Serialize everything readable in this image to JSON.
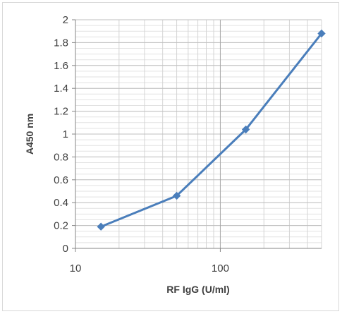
{
  "chart_data": {
    "type": "line",
    "title": "",
    "xlabel": "RF IgG (U/ml)",
    "ylabel": "A450 nm",
    "x_scale": "log",
    "xlim": [
      10,
      500
    ],
    "ylim": [
      0,
      2
    ],
    "x_ticks": [
      10,
      100
    ],
    "x_tick_labels": [
      "10",
      "100"
    ],
    "y_ticks": [
      0,
      0.2,
      0.4,
      0.6,
      0.8,
      1,
      1.2,
      1.4,
      1.6,
      1.8,
      2
    ],
    "y_tick_labels": [
      "0",
      "0.2",
      "0.4",
      "0.6",
      "0.8",
      "1",
      "1.2",
      "1.4",
      "1.6",
      "1.8",
      "2"
    ],
    "y_minor_step": 0.05,
    "grid": true,
    "legend": "none",
    "series": [
      {
        "x": [
          15,
          50,
          150,
          500
        ],
        "y": [
          0.19,
          0.46,
          1.04,
          1.88
        ],
        "color": "#4a7ebb",
        "marker": "diamond"
      }
    ]
  }
}
